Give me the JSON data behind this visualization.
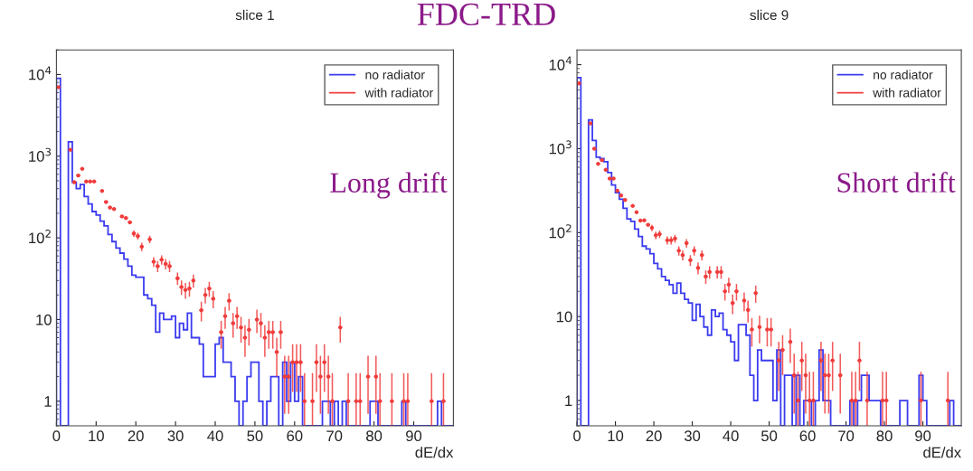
{
  "chart_data": [
    {
      "type": "histogram",
      "title": "slice 1",
      "xlabel": "dE/dx",
      "log": "y",
      "legend": "top right",
      "grid": false,
      "bins": [
        0,
        1,
        2,
        3,
        4,
        5,
        6,
        7,
        8,
        9,
        10,
        11,
        12,
        13,
        14,
        15,
        16,
        17,
        18,
        19,
        20,
        21,
        22,
        23,
        24,
        25,
        26,
        27,
        28,
        29,
        30,
        31,
        32,
        33,
        34,
        35,
        36,
        37,
        38,
        39,
        40,
        41,
        42,
        43,
        44,
        45,
        46,
        47,
        48,
        49,
        50,
        51,
        52,
        53,
        54,
        55,
        56,
        57,
        58,
        59,
        60,
        61,
        62,
        63,
        64,
        65,
        66,
        67,
        68,
        69,
        70,
        71,
        72,
        73,
        74,
        75,
        76,
        77,
        78,
        79,
        80,
        81,
        82,
        83,
        84,
        85,
        86,
        87,
        88,
        89,
        90,
        91,
        92,
        93,
        94,
        95,
        96,
        97,
        98,
        99,
        100
      ],
      "xlim": [
        0,
        100
      ],
      "xticks": [
        0,
        10,
        20,
        30,
        40,
        50,
        60,
        70,
        80,
        90
      ],
      "ylim": [
        0.5,
        20000
      ],
      "yticks": [
        1,
        10,
        {
          "value": 100,
          "label": "10$^{2}$"
        },
        {
          "value": 1000,
          "label": "10$^{3}$"
        },
        {
          "value": 10000,
          "label": "10$^{4}$"
        }
      ],
      "annotations": [
        "Long drift",
        "FDC-TRD"
      ],
      "series": [
        {
          "name": "no radiator",
          "color": "#3b3bf0",
          "values": [
            9000,
            null,
            null,
            1500,
            480,
            400,
            450,
            320,
            260,
            210,
            190,
            160,
            140,
            110,
            90,
            75,
            65,
            55,
            45,
            35,
            33,
            33,
            20,
            18,
            15,
            7,
            12,
            10,
            10,
            11,
            6,
            9,
            7.5,
            12,
            6,
            6,
            5,
            2,
            2,
            2,
            5,
            6,
            3,
            3,
            2,
            1,
            null,
            1,
            2,
            3,
            3,
            1,
            null,
            1,
            2,
            2,
            null,
            3,
            1,
            3,
            1,
            2,
            null,
            null,
            null,
            null,
            null,
            1,
            1,
            null,
            1,
            null,
            1,
            null,
            null,
            null,
            null,
            null,
            null,
            1,
            1,
            null,
            null,
            null,
            null,
            null,
            null,
            1,
            null,
            null,
            null,
            null,
            null,
            null,
            null,
            null,
            1,
            null,
            null,
            null
          ]
        },
        {
          "name": "with radiator",
          "type": "scatter",
          "color": "#f03c3c",
          "marker": "circle",
          "x": [
            0.5,
            3.5,
            4.5,
            5.5,
            6.5,
            7.5,
            8.5,
            9.5,
            11.5,
            12.5,
            13.5,
            14.5,
            16.5,
            17.5,
            18.5,
            19.5,
            20.5,
            21.5,
            23.5,
            24.5,
            25.5,
            26.5,
            27.5,
            28.5,
            30.5,
            31.5,
            32.5,
            33.5,
            34.5,
            36.5,
            37.5,
            38.5,
            39.5,
            41.5,
            42.5,
            43.5,
            44.5,
            45.5,
            46.5,
            47.5,
            48.5,
            50.5,
            51.5,
            52.5,
            53.5,
            54.5,
            55.5,
            56.5,
            57.5,
            58.5,
            59.5,
            60.5,
            61.5,
            62.5,
            64.5,
            65.5,
            66.5,
            67.5,
            68.5,
            69.5,
            71.5,
            73.5,
            75.5,
            76.5,
            78.5,
            80.5,
            81.5,
            84.5,
            87.5,
            88.5,
            94.5,
            97.5
          ],
          "values": [
            7000,
            1200,
            480,
            580,
            700,
            490,
            490,
            490,
            375,
            275,
            235,
            225,
            183,
            175,
            155,
            113,
            105,
            78,
            96,
            51,
            45,
            54,
            48,
            45,
            32,
            25,
            23,
            24,
            30,
            13,
            20,
            24,
            18,
            7,
            11,
            17,
            9,
            11,
            8,
            6,
            7.5,
            10,
            9,
            6,
            7,
            7,
            4,
            7,
            2,
            2,
            3,
            3,
            3,
            1,
            1,
            3,
            2,
            3,
            2,
            1,
            8,
            1,
            1,
            1,
            2,
            2,
            1,
            1,
            1,
            1,
            1,
            1
          ],
          "errors": [
            null,
            null,
            null,
            null,
            null,
            null,
            null,
            null,
            null,
            null,
            null,
            null,
            null,
            null,
            null,
            10,
            10,
            9,
            10,
            7,
            7,
            7,
            7,
            7,
            5.5,
            5,
            5,
            5,
            5.5,
            3.5,
            4.3,
            5,
            4.3,
            2.6,
            3.3,
            4.1,
            3,
            3.3,
            2.8,
            2.5,
            2.7,
            3.2,
            3,
            2.5,
            2.6,
            2.6,
            2,
            2.6,
            [
              0.7,
              3.6
            ],
            [
              0.7,
              3.6
            ],
            [
              1.3,
              5
            ],
            [
              1.3,
              5
            ],
            [
              1.3,
              5
            ],
            [
              0.5,
              2.2
            ],
            [
              0.5,
              2.2
            ],
            [
              1.3,
              5
            ],
            [
              0.7,
              3.6
            ],
            [
              1.3,
              5
            ],
            [
              0.7,
              3.6
            ],
            [
              0.5,
              2.2
            ],
            2.8,
            [
              0.5,
              2.2
            ],
            [
              0.5,
              2.2
            ],
            [
              0.5,
              2.2
            ],
            [
              0.7,
              3.6
            ],
            [
              0.7,
              3.6
            ],
            [
              0.5,
              2.2
            ],
            [
              0.5,
              2.2
            ],
            [
              0.5,
              2.2
            ],
            [
              0.5,
              2.2
            ],
            [
              0.5,
              2.2
            ],
            [
              0.5,
              2.2
            ]
          ],
          "xerrors": [
            0.5,
            0.5,
            0.5,
            0.5,
            0.5,
            0.5,
            0.5,
            0.5,
            0.5,
            0.5,
            0.5,
            0.5,
            0.5,
            0.5,
            0.5,
            0.5,
            0.5,
            0.5,
            0.5,
            0.5,
            0.5,
            0.5,
            0.5,
            0.5,
            0.5,
            0.5,
            0.5,
            0.5,
            0.5,
            0.5,
            0.5,
            0.5,
            0.5,
            0.5,
            0.5,
            0.5,
            0.5,
            0.5,
            0.5,
            0.5,
            0.5,
            0.5,
            0.5,
            0.5,
            0.5,
            0.5,
            0.5,
            0.5,
            0.5,
            0.5,
            0.5,
            0.5,
            0.5,
            0.5,
            0.5,
            0.5,
            0.5,
            0.5,
            0.5,
            0.5,
            0.5,
            0.5,
            0.5,
            0.5,
            0.5,
            0.5,
            0.5,
            0.5,
            0.5,
            0.5,
            0.5,
            0.5
          ]
        }
      ]
    },
    {
      "type": "histogram",
      "title": "slice 9",
      "xlabel": "dE/dx",
      "log": "y",
      "legend": "top right",
      "grid": false,
      "bins": [
        0,
        1,
        2,
        3,
        4,
        5,
        6,
        7,
        8,
        9,
        10,
        11,
        12,
        13,
        14,
        15,
        16,
        17,
        18,
        19,
        20,
        21,
        22,
        23,
        24,
        25,
        26,
        27,
        28,
        29,
        30,
        31,
        32,
        33,
        34,
        35,
        36,
        37,
        38,
        39,
        40,
        41,
        42,
        43,
        44,
        45,
        46,
        47,
        48,
        49,
        50,
        51,
        52,
        53,
        54,
        55,
        56,
        57,
        58,
        59,
        60,
        61,
        62,
        63,
        64,
        65,
        66,
        67,
        68,
        69,
        70,
        71,
        72,
        73,
        74,
        75,
        76,
        77,
        78,
        79,
        80,
        81,
        82,
        83,
        84,
        85,
        86,
        87,
        88,
        89,
        90,
        91,
        92,
        93,
        94,
        95,
        96,
        97,
        98,
        99,
        100
      ],
      "xlim": [
        0,
        100
      ],
      "xticks": [
        0,
        10,
        20,
        30,
        40,
        50,
        60,
        70,
        80,
        90
      ],
      "ylim": [
        0.5,
        15000
      ],
      "yticks": [
        1,
        10,
        {
          "value": 100,
          "label": "10$^{2}$"
        },
        {
          "value": 1000,
          "label": "10$^{3}$"
        },
        {
          "value": 10000,
          "label": "10$^{4}$"
        }
      ],
      "annotations": [
        "Short drift"
      ],
      "series": [
        {
          "name": "no radiator",
          "color": "#3b3bf0",
          "values": [
            7000,
            null,
            null,
            2200,
            1250,
            790,
            760,
            700,
            520,
            370,
            300,
            250,
            195,
            146,
            136,
            110,
            90,
            69,
            64,
            56,
            43,
            37,
            30,
            27,
            24,
            19,
            25,
            19,
            16,
            14.5,
            9,
            14,
            10,
            7.5,
            6,
            12,
            10,
            11,
            7,
            6,
            5,
            3,
            8,
            8,
            6,
            2,
            1,
            4,
            3,
            3,
            3,
            1,
            4,
            null,
            2,
            2,
            null,
            2,
            null,
            1,
            1,
            null,
            1,
            4,
            1,
            1,
            null,
            null,
            null,
            null,
            null,
            1,
            null,
            1,
            2,
            2,
            1,
            1,
            1,
            null,
            null,
            null,
            null,
            null,
            1,
            1,
            null,
            null,
            null,
            2,
            1,
            null,
            null,
            null,
            null,
            null,
            null,
            1,
            null,
            null
          ]
        },
        {
          "name": "with radiator",
          "type": "scatter",
          "color": "#f03c3c",
          "marker": "circle",
          "x": [
            0.5,
            3.5,
            4.5,
            5.5,
            6.5,
            7.5,
            8.5,
            9.5,
            10.5,
            11.5,
            12.5,
            14.5,
            15.5,
            16.5,
            17.5,
            18.5,
            19.5,
            20.5,
            21.5,
            23.5,
            24.5,
            25.5,
            26.5,
            27.5,
            28.5,
            29.5,
            30.5,
            31.5,
            32.5,
            33.5,
            34.5,
            36.5,
            37.5,
            38.5,
            39.5,
            40.5,
            41.5,
            43.5,
            44.5,
            45.5,
            46.5,
            47.5,
            49.5,
            50.5,
            52.5,
            53.5,
            55.5,
            56.5,
            57.5,
            58.5,
            59.5,
            60.5,
            61.5,
            63.5,
            64.5,
            65.5,
            66.5,
            68.5,
            71.5,
            72.5,
            73.5,
            75.5,
            79.5,
            80.5,
            89.5,
            96.5
          ],
          "values": [
            6000,
            2000,
            1000,
            660,
            730,
            560,
            440,
            440,
            315,
            277,
            245,
            208,
            175,
            139,
            140,
            124,
            114,
            93,
            96,
            81,
            81,
            85,
            61,
            54,
            75,
            47,
            61,
            38,
            54,
            30,
            34,
            34,
            34,
            20,
            24,
            14.5,
            20,
            15.5,
            12,
            7,
            19,
            7.5,
            7,
            7,
            3,
            4,
            5,
            2,
            1,
            3,
            2,
            1,
            1,
            3,
            2,
            2,
            3,
            2,
            1,
            1,
            3,
            1,
            1,
            1,
            1,
            1
          ],
          "errors": [
            null,
            null,
            null,
            null,
            null,
            null,
            null,
            null,
            null,
            null,
            null,
            null,
            null,
            null,
            null,
            null,
            10,
            9.5,
            9.8,
            9,
            9,
            9.2,
            7.8,
            7.3,
            8.7,
            6.9,
            7.8,
            6.2,
            7.3,
            5.5,
            5.8,
            5.8,
            5.8,
            4.5,
            4.9,
            3.8,
            4.5,
            3.9,
            3.5,
            2.6,
            4.4,
            2.7,
            2.6,
            2.6,
            [
              1.3,
              5
            ],
            2,
            2.2,
            [
              0.7,
              3.6
            ],
            [
              0.5,
              2.2
            ],
            [
              1.3,
              5
            ],
            [
              0.7,
              3.6
            ],
            [
              0.5,
              2.2
            ],
            [
              0.5,
              2.2
            ],
            [
              1.3,
              5
            ],
            [
              0.7,
              3.6
            ],
            [
              0.7,
              3.6
            ],
            [
              1.3,
              5
            ],
            [
              0.7,
              3.6
            ],
            [
              0.5,
              2.2
            ],
            [
              0.5,
              2.2
            ],
            [
              1.3,
              5
            ],
            [
              0.5,
              2.2
            ],
            [
              0.5,
              2.2
            ],
            [
              0.5,
              2.2
            ],
            [
              0.5,
              2.2
            ],
            [
              0.5,
              2.2
            ]
          ],
          "xerrors": [
            0.5,
            0.5,
            0.5,
            0.5,
            0.5,
            0.5,
            0.5,
            0.5,
            0.5,
            0.5,
            0.5,
            0.5,
            0.5,
            0.5,
            0.5,
            0.5,
            0.5,
            0.5,
            0.5,
            0.5,
            0.5,
            0.5,
            0.5,
            0.5,
            0.5,
            0.5,
            0.5,
            0.5,
            0.5,
            0.5,
            0.5,
            0.5,
            0.5,
            0.5,
            0.5,
            0.5,
            0.5,
            0.5,
            0.5,
            0.5,
            0.5,
            0.5,
            0.5,
            0.5,
            0.5,
            0.5,
            0.5,
            0.5,
            0.5,
            0.5,
            0.5,
            0.5,
            0.5,
            0.5,
            0.5,
            0.5,
            0.5,
            0.5,
            0.5,
            0.5,
            0.5,
            0.5,
            0.5,
            0.5,
            0.5,
            0.5
          ]
        }
      ]
    }
  ]
}
